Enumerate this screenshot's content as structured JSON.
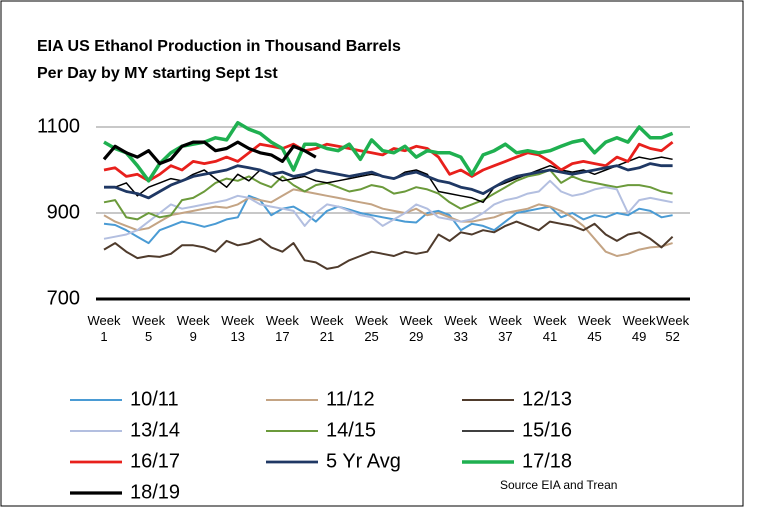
{
  "chart_data": {
    "type": "line",
    "title": "EIA US Ethanol Production in Thousand Barrels Per Day by MY starting Sept 1st",
    "source": "Source EIA and Trean",
    "categories": [
      "Week 1",
      null,
      null,
      null,
      "Week 5",
      null,
      null,
      null,
      "Week 9",
      null,
      null,
      null,
      "Week 13",
      null,
      null,
      null,
      "Week 17",
      null,
      null,
      null,
      "Week 21",
      null,
      null,
      null,
      "Week 25",
      null,
      null,
      null,
      "Week 29",
      null,
      null,
      null,
      "Week 33",
      null,
      null,
      null,
      "Week 37",
      null,
      null,
      null,
      "Week 41",
      null,
      null,
      null,
      "Week 45",
      null,
      null,
      null,
      "Week 49",
      null,
      null,
      "Week 52"
    ],
    "ylim": [
      700,
      1100
    ],
    "yticks": [
      700,
      900,
      1100
    ],
    "grid": true,
    "series": [
      {
        "name": "10/11",
        "color": "#4a9bd4",
        "values": [
          875,
          872,
          860,
          845,
          830,
          860,
          870,
          880,
          875,
          868,
          875,
          885,
          890,
          940,
          930,
          895,
          910,
          915,
          900,
          880,
          905,
          915,
          908,
          900,
          895,
          890,
          885,
          880,
          878,
          900,
          905,
          895,
          860,
          875,
          870,
          860,
          880,
          900,
          905,
          910,
          915,
          890,
          900,
          885,
          895,
          890,
          900,
          895,
          910,
          905,
          890,
          895
        ]
      },
      {
        "name": "11/12",
        "color": "#c4a484",
        "values": [
          895,
          880,
          870,
          860,
          865,
          880,
          895,
          900,
          905,
          910,
          915,
          912,
          920,
          935,
          930,
          925,
          940,
          955,
          950,
          945,
          940,
          935,
          930,
          925,
          920,
          910,
          905,
          900,
          910,
          895,
          900,
          890,
          880,
          880,
          885,
          890,
          900,
          905,
          910,
          920,
          915,
          905,
          890,
          870,
          840,
          810,
          800,
          805,
          815,
          820,
          822,
          830
        ]
      },
      {
        "name": "12/13",
        "color": "#4f3b2c",
        "values": [
          815,
          830,
          810,
          795,
          800,
          798,
          805,
          825,
          825,
          820,
          810,
          835,
          825,
          830,
          840,
          820,
          810,
          830,
          790,
          785,
          770,
          775,
          790,
          800,
          810,
          805,
          800,
          810,
          805,
          810,
          850,
          835,
          855,
          850,
          860,
          855,
          870,
          880,
          870,
          860,
          880,
          875,
          870,
          860,
          875,
          850,
          835,
          850,
          855,
          840,
          820,
          845
        ]
      },
      {
        "name": "13/14",
        "color": "#b3bfe0",
        "values": [
          840,
          845,
          850,
          860,
          880,
          900,
          920,
          910,
          915,
          920,
          925,
          930,
          940,
          935,
          920,
          915,
          910,
          905,
          870,
          900,
          920,
          915,
          905,
          895,
          890,
          870,
          885,
          900,
          920,
          910,
          890,
          885,
          880,
          885,
          900,
          920,
          930,
          935,
          945,
          950,
          975,
          950,
          940,
          945,
          955,
          960,
          955,
          900,
          930,
          935,
          930,
          925
        ]
      },
      {
        "name": "14/15",
        "color": "#6b9a3b",
        "values": [
          925,
          930,
          890,
          885,
          900,
          890,
          895,
          930,
          935,
          950,
          970,
          980,
          975,
          985,
          970,
          960,
          985,
          965,
          950,
          965,
          970,
          960,
          950,
          955,
          965,
          960,
          945,
          950,
          960,
          955,
          945,
          925,
          910,
          920,
          930,
          945,
          960,
          975,
          985,
          990,
          1000,
          970,
          985,
          975,
          970,
          965,
          960,
          965,
          965,
          960,
          950,
          945
        ]
      },
      {
        "name": "15/16",
        "color": "#000000",
        "values": [
          960,
          960,
          970,
          940,
          960,
          970,
          980,
          975,
          990,
          1000,
          980,
          960,
          990,
          975,
          1000,
          990,
          975,
          980,
          985,
          975,
          970,
          975,
          980,
          985,
          990,
          985,
          980,
          995,
          1000,
          990,
          950,
          945,
          940,
          935,
          925,
          960,
          970,
          980,
          990,
          1000,
          1010,
          1000,
          995,
          1000,
          990,
          1000,
          1010,
          1020,
          1030,
          1025,
          1030,
          1025
        ]
      },
      {
        "name": "16/17",
        "color": "#e8201c",
        "values": [
          1000,
          1005,
          985,
          990,
          975,
          990,
          1010,
          1000,
          1020,
          1015,
          1020,
          1030,
          1020,
          1040,
          1060,
          1055,
          1050,
          1060,
          1045,
          1050,
          1060,
          1055,
          1050,
          1045,
          1040,
          1035,
          1050,
          1045,
          1055,
          1050,
          1030,
          990,
          1000,
          985,
          1000,
          1010,
          1020,
          1030,
          1040,
          1035,
          1020,
          1000,
          1015,
          1020,
          1015,
          1010,
          1030,
          1020,
          1060,
          1050,
          1045,
          1065
        ]
      },
      {
        "name": "5 Yr Avg",
        "color": "#1f3864",
        "values": [
          960,
          960,
          950,
          945,
          935,
          950,
          965,
          975,
          985,
          990,
          995,
          1000,
          1010,
          1005,
          1000,
          990,
          995,
          985,
          990,
          1000,
          995,
          990,
          985,
          990,
          995,
          985,
          980,
          990,
          995,
          985,
          975,
          970,
          960,
          955,
          945,
          960,
          975,
          985,
          990,
          995,
          1000,
          995,
          990,
          995,
          1000,
          1005,
          1010,
          1000,
          1005,
          1015,
          1010,
          1010
        ]
      },
      {
        "name": "17/18",
        "color": "#1fb050",
        "values": [
          1065,
          1050,
          1040,
          1010,
          975,
          1015,
          1040,
          1055,
          1060,
          1065,
          1075,
          1070,
          1110,
          1095,
          1085,
          1065,
          1050,
          1000,
          1060,
          1060,
          1050,
          1045,
          1060,
          1025,
          1070,
          1045,
          1040,
          1055,
          1030,
          1045,
          1040,
          1040,
          1030,
          990,
          1035,
          1045,
          1060,
          1040,
          1045,
          1040,
          1045,
          1055,
          1065,
          1070,
          1040,
          1065,
          1075,
          1065,
          1100,
          1075,
          1075,
          1085
        ]
      },
      {
        "name": "18/19",
        "color": "#000000",
        "values": [
          1025,
          1055,
          1040,
          1030,
          1045,
          1015,
          1025,
          1055,
          1065,
          1065,
          1045,
          1050,
          1065,
          1050,
          1040,
          1035,
          1020,
          1055,
          1045,
          1030,
          null,
          null,
          null,
          null,
          null,
          null,
          null,
          null,
          null,
          null,
          null,
          null,
          null,
          null,
          null,
          null,
          null,
          null,
          null,
          null,
          null,
          null,
          null,
          null,
          null,
          null,
          null,
          null,
          null,
          null,
          null,
          null
        ]
      }
    ]
  }
}
